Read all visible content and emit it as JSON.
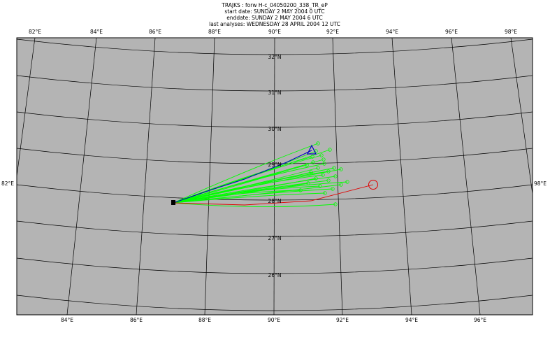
{
  "header": {
    "lines": [
      "TRAJKS : forw H-c_04050200_338_TR_eP",
      "start date:  SUNDAY     2 MAY      2004  0 UTC",
      "enddate:  SUNDAY     2 MAY      2004  6 UTC",
      "last analyses:  WEDNESDAY 28 APRIL     2004 12 UTC"
    ]
  },
  "map": {
    "lon_top": [
      "82°E",
      "84°E",
      "86°E",
      "88°E",
      "90°E",
      "92°E",
      "94°E",
      "96°E",
      "98°E"
    ],
    "lon_bottom": [
      "84°E",
      "86°E",
      "88°E",
      "90°E",
      "92°E",
      "94°E",
      "96°E"
    ],
    "lon_left": "82°E",
    "lon_right": "98°E",
    "lat_labels": [
      "32°N",
      "31°N",
      "30°N",
      "29°N",
      "28°N",
      "27°N",
      "26°N"
    ]
  }
}
